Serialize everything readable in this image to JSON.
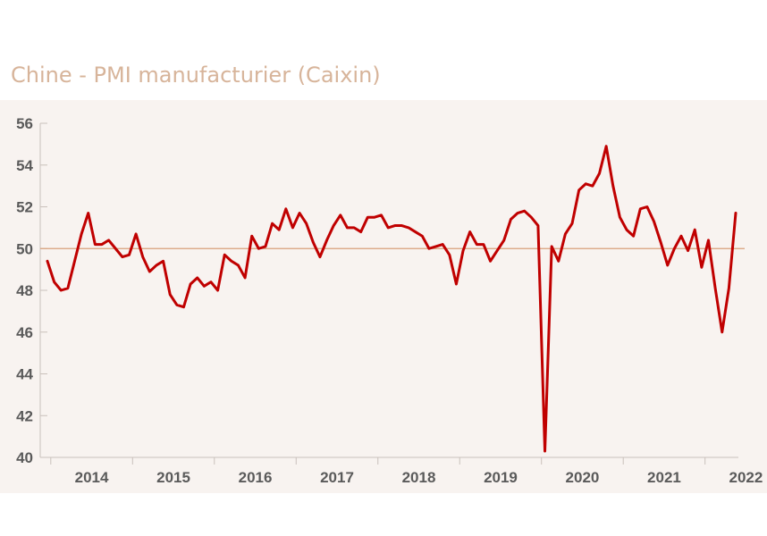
{
  "title": "Chine - PMI manufacturier (Caixin)",
  "chart_data": {
    "type": "line",
    "title": "Chine - PMI manufacturier (Caixin)",
    "xlabel": "",
    "ylabel": "",
    "ylim": [
      40,
      56
    ],
    "yticks": [
      40,
      42,
      44,
      46,
      48,
      50,
      52,
      54,
      56
    ],
    "xticks": [
      "2014",
      "2015",
      "2016",
      "2017",
      "2018",
      "2019",
      "2020",
      "2021",
      "2022"
    ],
    "reference_line": 50,
    "grid": false,
    "x_start": "2013-12",
    "series": [
      {
        "color": "#c00000",
        "values": [
          49.4,
          48.4,
          48.0,
          48.1,
          49.4,
          50.7,
          51.7,
          50.2,
          50.2,
          50.4,
          50.0,
          49.6,
          49.7,
          50.7,
          49.6,
          48.9,
          49.2,
          49.4,
          47.8,
          47.3,
          47.2,
          48.3,
          48.6,
          48.2,
          48.4,
          48.0,
          49.7,
          49.4,
          49.2,
          48.6,
          50.6,
          50.0,
          50.1,
          51.2,
          50.9,
          51.9,
          51.0,
          51.7,
          51.2,
          50.3,
          49.6,
          50.4,
          51.1,
          51.6,
          51.0,
          51.0,
          50.8,
          51.5,
          51.5,
          51.6,
          51.0,
          51.1,
          51.1,
          51.0,
          50.8,
          50.6,
          50.0,
          50.1,
          50.2,
          49.7,
          48.3,
          49.9,
          50.8,
          50.2,
          50.2,
          49.4,
          49.9,
          50.4,
          51.4,
          51.7,
          51.8,
          51.5,
          51.1,
          40.3,
          50.1,
          49.4,
          50.7,
          51.2,
          52.8,
          53.1,
          53.0,
          53.6,
          54.9,
          53.0,
          51.5,
          50.9,
          50.6,
          51.9,
          52.0,
          51.3,
          50.3,
          49.2,
          50.0,
          50.6,
          49.9,
          50.9,
          49.1,
          50.4,
          48.1,
          46.0,
          48.1,
          51.7
        ]
      }
    ]
  }
}
